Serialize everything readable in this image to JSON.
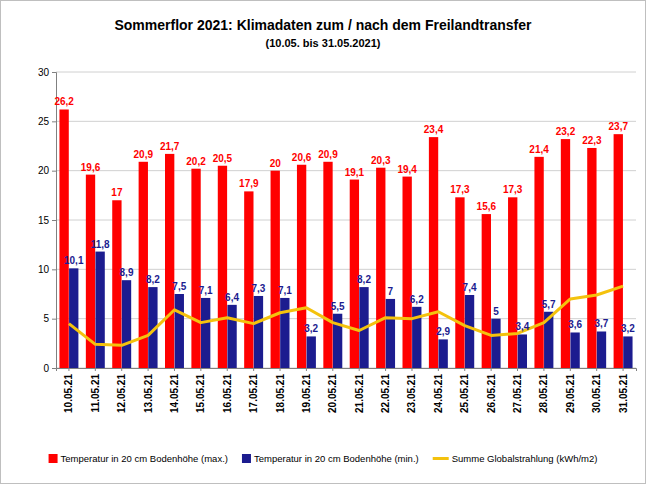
{
  "chart_data": {
    "type": "bar",
    "title": "Sommerflor 2021: Klimadaten zum / nach dem Freilandtransfer",
    "subtitle": "(10.05. bis 31.05.2021)",
    "categories": [
      "10.05.21",
      "11.05.21",
      "12.05.21",
      "13.05.21",
      "14.05.21",
      "15.05.21",
      "16.05.21",
      "17.05.21",
      "18.05.21",
      "19.05.21",
      "20.05.21",
      "21.05.21",
      "22.05.21",
      "23.05.21",
      "24.05.21",
      "25.05.21",
      "26.05.21",
      "27.05.21",
      "28.05.21",
      "29.05.21",
      "30.05.21",
      "31.05.21"
    ],
    "series": [
      {
        "name": "Temperatur in 20 cm Bodenhöhe (max.)",
        "type": "bar",
        "color": "#ff0000",
        "data_labels": true,
        "values": [
          26.2,
          19.6,
          17,
          20.9,
          21.7,
          20.2,
          20.5,
          17.9,
          20,
          20.6,
          20.9,
          19.1,
          20.3,
          19.4,
          23.4,
          17.3,
          15.6,
          17.3,
          21.4,
          23.2,
          22.3,
          23.7
        ],
        "value_labels": [
          "26,2",
          "19,6",
          "17",
          "20,9",
          "21,7",
          "20,2",
          "20,5",
          "17,9",
          "20",
          "20,6",
          "20,9",
          "19,1",
          "20,3",
          "19,4",
          "23,4",
          "17,3",
          "15,6",
          "17,3",
          "21,4",
          "23,2",
          "22,3",
          "23,7"
        ]
      },
      {
        "name": "Temperatur in 20 cm Bodenhöhe (min.)",
        "type": "bar",
        "color": "#1c1c8f",
        "data_labels": true,
        "values": [
          10.1,
          11.8,
          8.9,
          8.2,
          7.5,
          7.1,
          6.4,
          7.3,
          7.1,
          3.2,
          5.5,
          8.2,
          7,
          6.2,
          2.9,
          7.4,
          5,
          3.4,
          5.7,
          3.6,
          3.7,
          3.2
        ],
        "value_labels": [
          "10,1",
          "11,8",
          "8,9",
          "8,2",
          "7,5",
          "7,1",
          "6,4",
          "7,3",
          "7,1",
          "3,2",
          "5,5",
          "8,2",
          "7",
          "6,2",
          "2,9",
          "7,4",
          "5",
          "3,4",
          "5,7",
          "3,6",
          "3,7",
          "3,2"
        ]
      },
      {
        "name": "Summe Globalstrahlung (kWh/m2)",
        "type": "line",
        "color": "#f4c20d",
        "data_labels": false,
        "values": [
          4.5,
          2.4,
          2.3,
          3.3,
          5.9,
          4.6,
          5.1,
          4.5,
          5.6,
          6.1,
          4.6,
          3.8,
          5.1,
          5.0,
          5.7,
          4.3,
          3.3,
          3.5,
          4.6,
          7.0,
          7.4,
          8.3
        ]
      }
    ],
    "ylim": [
      0,
      30
    ],
    "yticks": [
      0,
      5,
      10,
      15,
      20,
      25,
      30
    ],
    "grid": true,
    "legend": "bottom"
  }
}
